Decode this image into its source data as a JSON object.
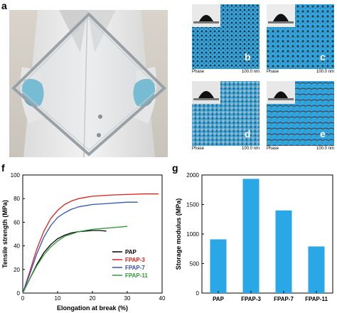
{
  "figure": {
    "panels": {
      "a": "a",
      "b": "b",
      "c": "c",
      "d": "d",
      "e": "e",
      "f": "f",
      "g": "g"
    }
  },
  "afm": {
    "phase_label": "Phase",
    "scale_label": "100.0 nm",
    "color": "#2aa7e6"
  },
  "chart_data": [
    {
      "type": "line",
      "panel": "f",
      "xlabel": "Elongation at break (%)",
      "ylabel": "Tensile strength (MPa)",
      "xlim": [
        0,
        40
      ],
      "ylim": [
        0,
        100
      ],
      "xticks": [
        0,
        10,
        20,
        30,
        40
      ],
      "yticks": [
        0,
        20,
        40,
        60,
        80,
        100
      ],
      "legend_position": "bottom-right",
      "series": [
        {
          "name": "PAP",
          "color": "#000000",
          "x": [
            0,
            2,
            4,
            6,
            8,
            10,
            12,
            14,
            16,
            18,
            20,
            22,
            24
          ],
          "y": [
            0,
            12,
            24,
            34,
            41,
            46,
            49,
            51,
            52,
            52.5,
            53,
            53,
            52.5
          ]
        },
        {
          "name": "FPAP-3",
          "color": "#e0201b",
          "x": [
            0,
            2,
            4,
            6,
            8,
            10,
            12,
            14,
            16,
            20,
            25,
            30,
            35,
            39
          ],
          "y": [
            0,
            18,
            37,
            52,
            63,
            70,
            75,
            78,
            80,
            82,
            83,
            83.5,
            84,
            84
          ]
        },
        {
          "name": "FPAP-7",
          "color": "#3452b8",
          "x": [
            0,
            2,
            4,
            6,
            8,
            10,
            12,
            14,
            16,
            20,
            25,
            30,
            33
          ],
          "y": [
            0,
            16,
            33,
            47,
            57,
            64,
            68,
            71,
            73,
            75,
            76,
            77,
            77
          ]
        },
        {
          "name": "FPAP-11",
          "color": "#2f9a3a",
          "x": [
            0,
            2,
            4,
            6,
            8,
            10,
            12,
            14,
            16,
            18,
            20,
            24,
            28,
            30
          ],
          "y": [
            0,
            12,
            23,
            32,
            39,
            44,
            48,
            50,
            52,
            53,
            54,
            55,
            56,
            56.5
          ]
        }
      ]
    },
    {
      "type": "bar",
      "panel": "g",
      "ylabel": "Storage modulus (MPa)",
      "categories": [
        "PAP",
        "FPAP-3",
        "FPAP-7",
        "FPAP-11"
      ],
      "values": [
        910,
        1935,
        1400,
        790
      ],
      "ylim": [
        0,
        2000
      ],
      "yticks": [
        0,
        500,
        1000,
        1500,
        2000
      ],
      "color": "#2aa7e6"
    }
  ]
}
